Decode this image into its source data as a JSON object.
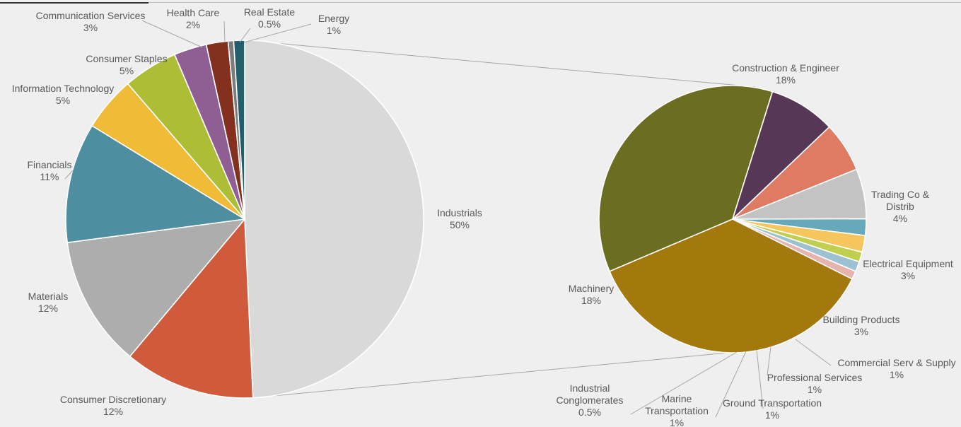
{
  "chart_data": [
    {
      "type": "pie",
      "name": "",
      "slices": [
        {
          "label": "Industrials",
          "value": 50,
          "display": "50%",
          "color": "#d9d9d9"
        },
        {
          "label": "Consumer Discretionary",
          "value": 12,
          "display": "12%",
          "color": "#d05a3c"
        },
        {
          "label": "Materials",
          "value": 12,
          "display": "12%",
          "color": "#adadad"
        },
        {
          "label": "Financials",
          "value": 11,
          "display": "11%",
          "color": "#4d8fa1"
        },
        {
          "label": "Information Technology",
          "value": 5,
          "display": "5%",
          "color": "#f0bb37"
        },
        {
          "label": "Consumer Staples",
          "value": 5,
          "display": "5%",
          "color": "#aebd36"
        },
        {
          "label": "Communication Services",
          "value": 3,
          "display": "3%",
          "color": "#8f5f94"
        },
        {
          "label": "Health Care",
          "value": 2,
          "display": "2%",
          "color": "#84301f"
        },
        {
          "label": "Real Estate",
          "value": 0.5,
          "display": "0.5%",
          "color": "#7b7b7b"
        },
        {
          "label": "Energy",
          "value": 1,
          "display": "1%",
          "color": "#245e6b"
        }
      ]
    },
    {
      "type": "pie",
      "name": "",
      "slices": [
        {
          "label": "Construction & Engineer",
          "value": 18,
          "display": "18%",
          "color": "#6b6e20"
        },
        {
          "label": "Trading Co & Distrib",
          "value": 4,
          "display": "4%",
          "color": "#573756"
        },
        {
          "label": "Electrical Equipment",
          "value": 3,
          "display": "3%",
          "color": "#e07b63"
        },
        {
          "label": "Building Products",
          "value": 3,
          "display": "3%",
          "color": "#c3c3c3"
        },
        {
          "label": "Commercial Serv & Supply",
          "value": 1,
          "display": "1%",
          "color": "#68a9b9"
        },
        {
          "label": "Professional Services",
          "value": 1,
          "display": "1%",
          "color": "#f5c65e"
        },
        {
          "label": "Ground Transportation",
          "value": 0.6,
          "display": "1%",
          "color": "#c0cf4e"
        },
        {
          "label": "Marine Transportation",
          "value": 0.6,
          "display": "1%",
          "color": "#9cc2d2"
        },
        {
          "label": "Industrial Conglomerates",
          "value": 0.5,
          "display": "0.5%",
          "color": "#e9b3ad"
        },
        {
          "label": "Machinery",
          "value": 18,
          "display": "18%",
          "color": "#a3780d"
        }
      ]
    }
  ]
}
